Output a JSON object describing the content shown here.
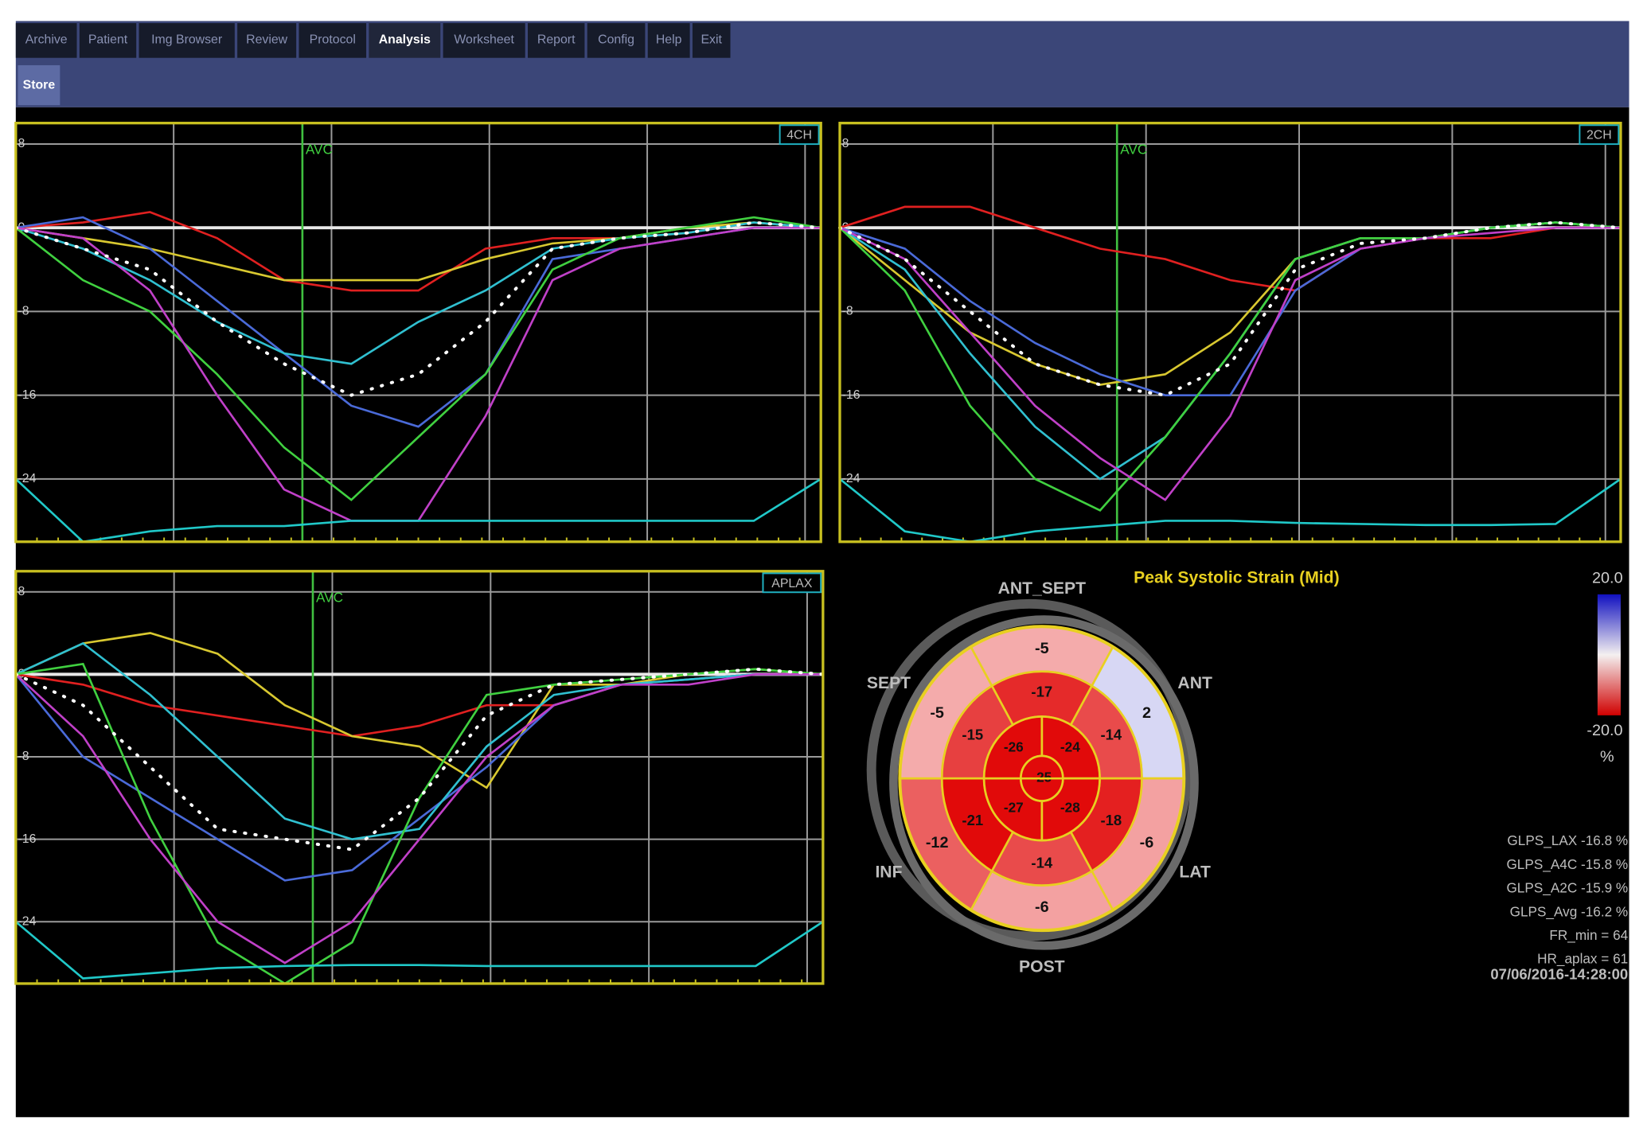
{
  "menu": {
    "tabs": [
      "Archive",
      "Patient",
      "Img Browser",
      "Review",
      "Protocol",
      "Analysis",
      "Worksheet",
      "Report",
      "Config",
      "Help",
      "Exit"
    ],
    "active_tab": 5
  },
  "toolbar": {
    "buttons": [
      "Store"
    ]
  },
  "plots": [
    {
      "label": "4CH",
      "marker": "AVC",
      "ylim": [
        -30,
        10
      ],
      "yticks": [
        8,
        0,
        -8,
        -16,
        -24
      ],
      "series": [
        {
          "color": "#e02020",
          "values": [
            0,
            0.5,
            1.5,
            -1,
            -5,
            -6,
            -6,
            -2,
            -1,
            -1,
            -0.5,
            0.5,
            0
          ]
        },
        {
          "color": "#d8c830",
          "values": [
            0,
            -1,
            -2,
            -3.5,
            -5,
            -5,
            -5,
            -3,
            -1.5,
            -1,
            0,
            0.5,
            0
          ]
        },
        {
          "color": "#4a6ad8",
          "values": [
            0,
            1,
            -2,
            -7,
            -12,
            -17,
            -19,
            -14,
            -3,
            -2,
            -1,
            0,
            0
          ]
        },
        {
          "color": "#30c0d0",
          "values": [
            0,
            -2,
            -5,
            -9,
            -12,
            -13,
            -9,
            -6,
            -2,
            -1,
            -0.5,
            0.5,
            0
          ]
        },
        {
          "color": "#40d040",
          "values": [
            0,
            -5,
            -8,
            -14,
            -21,
            -26,
            -20,
            -14,
            -4,
            -1,
            0,
            1,
            0
          ]
        },
        {
          "color": "#c040c8",
          "values": [
            0,
            -1,
            -6,
            -16,
            -25,
            -28,
            -28,
            -18,
            -5,
            -2,
            -1,
            0,
            0
          ]
        },
        {
          "color": "#ffffff",
          "dotted": true,
          "values": [
            0,
            -2,
            -4,
            -9,
            -13,
            -16,
            -14,
            -9,
            -2,
            -1,
            -0.5,
            0.5,
            0
          ]
        },
        {
          "color": "#20c8c8",
          "values": [
            -24,
            -30,
            -29,
            -28.5,
            -28.5,
            -28,
            -28,
            -28,
            -28,
            -28,
            -28,
            -28,
            -24
          ]
        }
      ]
    },
    {
      "label": "2CH",
      "marker": "AVC",
      "ylim": [
        -30,
        10
      ],
      "yticks": [
        8,
        0,
        -8,
        -16,
        -24
      ],
      "series": [
        {
          "color": "#e02020",
          "values": [
            0,
            2,
            2,
            0,
            -2,
            -3,
            -5,
            -6,
            -2,
            -1,
            -1,
            0,
            0
          ]
        },
        {
          "color": "#d8c830",
          "values": [
            0,
            -5,
            -10,
            -13,
            -15,
            -14,
            -10,
            -3,
            -1,
            -1,
            0,
            0.5,
            0
          ]
        },
        {
          "color": "#4a6ad8",
          "values": [
            0,
            -2,
            -7,
            -11,
            -14,
            -16,
            -16,
            -6,
            -2,
            -1,
            0,
            0.5,
            0
          ]
        },
        {
          "color": "#30c0d0",
          "values": [
            0,
            -4,
            -12,
            -19,
            -24,
            -20,
            -12,
            -3,
            -1,
            -1,
            0,
            0.5,
            0
          ]
        },
        {
          "color": "#40d040",
          "values": [
            0,
            -6,
            -17,
            -24,
            -27,
            -20,
            -12,
            -3,
            -1,
            -1,
            0,
            0.5,
            0
          ]
        },
        {
          "color": "#c040c8",
          "values": [
            0,
            -3,
            -10,
            -17,
            -22,
            -26,
            -18,
            -5,
            -2,
            -1,
            -0.5,
            0,
            0
          ]
        },
        {
          "color": "#ffffff",
          "dotted": true,
          "values": [
            0,
            -3,
            -8,
            -13,
            -15,
            -16,
            -13,
            -4,
            -1.5,
            -1,
            0,
            0.5,
            0
          ]
        },
        {
          "color": "#20c8c8",
          "values": [
            -24,
            -29,
            -30,
            -29,
            -28.5,
            -28,
            -28,
            -28.2,
            -28.3,
            -28.4,
            -28.4,
            -28.3,
            -24
          ]
        }
      ]
    },
    {
      "label": "APLAX",
      "marker": "AVC",
      "ylim": [
        -30,
        10
      ],
      "yticks": [
        8,
        0,
        -8,
        -16,
        -24
      ],
      "series": [
        {
          "color": "#e02020",
          "values": [
            0,
            -1,
            -3,
            -4,
            -5,
            -6,
            -5,
            -3,
            -3,
            -1,
            -0.5,
            0,
            0
          ]
        },
        {
          "color": "#d8c830",
          "values": [
            0,
            3,
            4,
            2,
            -3,
            -6,
            -7,
            -11,
            -1,
            -1,
            0,
            0.5,
            0
          ]
        },
        {
          "color": "#4a6ad8",
          "values": [
            0,
            -8,
            -12,
            -16,
            -20,
            -19,
            -14,
            -9,
            -3,
            -1,
            -0.5,
            0,
            0
          ]
        },
        {
          "color": "#30c0d0",
          "values": [
            0,
            3,
            -2,
            -8,
            -14,
            -16,
            -15,
            -7,
            -2,
            -1,
            -0.5,
            0,
            0
          ]
        },
        {
          "color": "#40d040",
          "values": [
            0,
            1,
            -14,
            -26,
            -30,
            -26,
            -12,
            -2,
            -1,
            -0.5,
            0,
            0.5,
            0
          ]
        },
        {
          "color": "#c040c8",
          "values": [
            0,
            -6,
            -16,
            -24,
            -28,
            -24,
            -16,
            -8,
            -3,
            -1,
            -1,
            0,
            0
          ]
        },
        {
          "color": "#ffffff",
          "dotted": true,
          "values": [
            0,
            -3,
            -9,
            -15,
            -16,
            -17,
            -12,
            -4,
            -1,
            -0.5,
            0,
            0.5,
            0
          ]
        },
        {
          "color": "#20c8c8",
          "values": [
            -24,
            -29.5,
            -29,
            -28.5,
            -28.3,
            -28.2,
            -28.2,
            -28.3,
            -28.3,
            -28.3,
            -28.3,
            -28.3,
            -24
          ]
        }
      ]
    }
  ],
  "bullseye": {
    "title": "Peak Systolic Strain (Mid)",
    "regions": [
      "ANT_SEPT",
      "ANT",
      "LAT",
      "POST",
      "INF",
      "SEPT"
    ],
    "basal": [
      -5,
      2,
      -6,
      -6,
      -12,
      -5
    ],
    "mid": [
      -17,
      -14,
      -18,
      -14,
      -21,
      -15
    ],
    "apical": [
      -24,
      -28,
      -27,
      -26
    ],
    "apex": -25,
    "colorbar": {
      "ticks": [
        {
          "value": 20,
          "label": "20.0"
        },
        {
          "value": -20,
          "label": "-20.0"
        }
      ],
      "unit": "%"
    }
  },
  "stats": [
    "GLPS_LAX -16.8 %",
    "GLPS_A4C -15.8 %",
    "GLPS_A2C -15.9 %",
    "GLPS_Avg -16.2 %",
    "FR_min = 64",
    "HR_aplax = 61",
    "07/06/2016-14:28:00"
  ]
}
